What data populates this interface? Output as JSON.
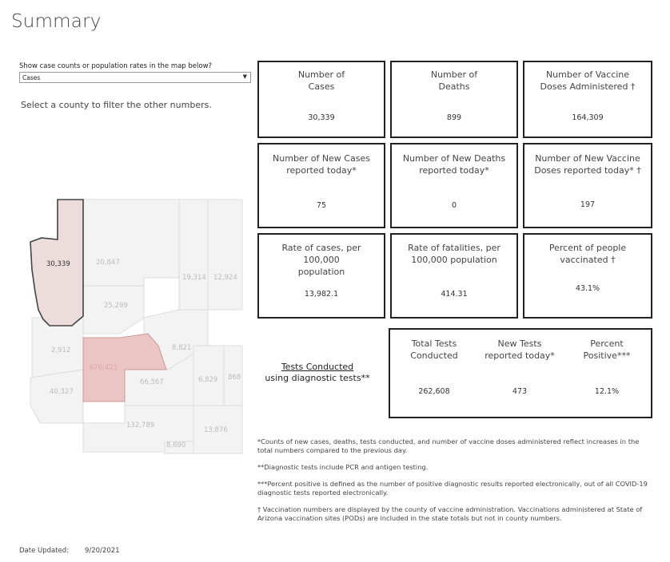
{
  "title": "Summary",
  "filter": {
    "label": "Show case counts or population rates in the map below?",
    "value": "Cases",
    "hint": "Select a county to filter the other numbers."
  },
  "kpis": [
    {
      "label1": "Number of",
      "label2": "Cases",
      "value": "30,339"
    },
    {
      "label1": "Number of",
      "label2": "Deaths",
      "value": "899"
    },
    {
      "label1": "Number of Vaccine",
      "label2": "Doses Administered †",
      "value": "164,309"
    },
    {
      "label1": "Number of New Cases",
      "label2": "reported today*",
      "value": "75"
    },
    {
      "label1": "Number of New Deaths",
      "label2": "reported today*",
      "value": "0"
    },
    {
      "label1": "Number of New Vaccine",
      "label2": "Doses reported today* †",
      "value": "197"
    },
    {
      "label1": "Rate of cases, per 100,000",
      "label2": "population",
      "value": "13,982.1"
    },
    {
      "label1": "Rate of fatalities, per",
      "label2": "100,000 population",
      "value": "414.31"
    },
    {
      "label1": "Percent of people",
      "label2": "vaccinated †",
      "value": "43.1%"
    }
  ],
  "tests": {
    "title": "Tests Conducted",
    "subtitle": "using diagnostic tests**",
    "cols": [
      {
        "label1": "Total Tests",
        "label2": "Conducted",
        "value": "262,608"
      },
      {
        "label1": "New Tests",
        "label2": "reported today*",
        "value": "473"
      },
      {
        "label1": "Percent",
        "label2": "Positive***",
        "value": "12.1%"
      }
    ]
  },
  "map": {
    "counties": [
      {
        "name": "selected",
        "value": "30,339"
      },
      {
        "name": "c2",
        "value": "20,847"
      },
      {
        "name": "c3",
        "value": "19,314"
      },
      {
        "name": "c4",
        "value": "12,924"
      },
      {
        "name": "c5",
        "value": "25,299"
      },
      {
        "name": "c6",
        "value": "2,912"
      },
      {
        "name": "c7",
        "value": "676,421"
      },
      {
        "name": "c8",
        "value": "8,821"
      },
      {
        "name": "c9",
        "value": "40,327"
      },
      {
        "name": "c10",
        "value": "66,567"
      },
      {
        "name": "c11",
        "value": "6,829"
      },
      {
        "name": "c12",
        "value": "868"
      },
      {
        "name": "c13",
        "value": "132,789"
      },
      {
        "name": "c14",
        "value": "13,876"
      },
      {
        "name": "c15",
        "value": "8,690"
      }
    ]
  },
  "notes": [
    "*Counts of new cases, deaths, tests conducted, and number of vaccine doses administered reflect increases in the total numbers compared to the previous day.",
    "**Diagnostic tests include PCR and antigen testing.",
    "***Percent positive is defined as the number of positive diagnostic results reported electronically, out of all COVID-19 diagnostic tests reported electronically.",
    "† Vaccination numbers are displayed by the county of vaccine administration. Vaccinations administered at State of Arizona vaccination sites (PODs) are included in the state totals but not in county numbers."
  ],
  "date": {
    "label": "Date Updated:",
    "value": "9/20/2021"
  },
  "colors": {
    "selected": "#eddcdc",
    "maricopa": "#ebc4c4",
    "base": "#f3f3f3",
    "border": "#222222"
  }
}
